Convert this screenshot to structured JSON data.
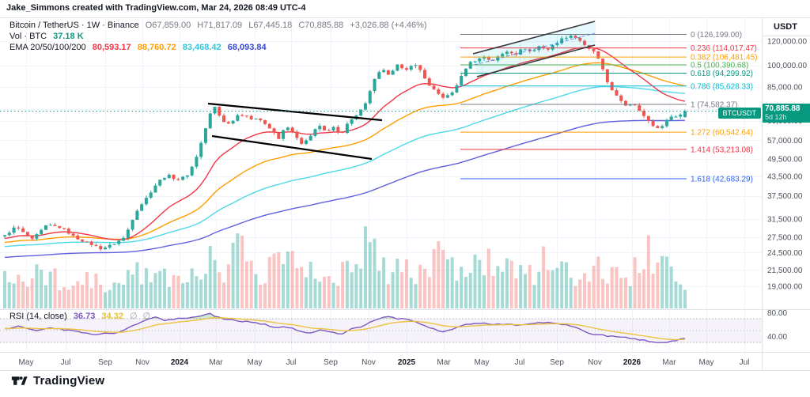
{
  "watermark": "Jake_Simmons created with TradingView.com, Mar 24, 2026 08:49 UTC-4",
  "header": {
    "symbol_line": "Bitcoin / TetherUS · 1W · Binance",
    "o": "O67,859.00",
    "h": "H71,817.09",
    "l": "L67,445.18",
    "c": "C70,885.88",
    "change": "+3,026.88 (+4.46%)",
    "vol_label": "Vol · BTC",
    "vol_value": "37.18 K",
    "ema_label": "EMA 20/50/100/200",
    "ema1": "80,593.17",
    "ema2": "88,760.72",
    "ema3": "83,468.42",
    "ema4": "68,093.84"
  },
  "rsi": {
    "label": "RSI (14, close)",
    "value": "36.73",
    "ma": "34.32",
    "icon1": "∅",
    "icon2": "∅"
  },
  "badges": {
    "symbol": "BTCUSDT",
    "price": "70,885.88",
    "countdown": "5d 12h"
  },
  "price_axis": {
    "currency": "USDT",
    "ticks": [
      [
        "120,000.00",
        120000
      ],
      [
        "100,000.00",
        100000
      ],
      [
        "85,000.00",
        85000
      ],
      [
        "72,000.00",
        72000
      ],
      [
        "66,000.00",
        66000
      ],
      [
        "57,000.00",
        57000
      ],
      [
        "49,500.00",
        49500
      ],
      [
        "43,500.00",
        43500
      ],
      [
        "37,500.00",
        37500
      ],
      [
        "31,500.00",
        31500
      ],
      [
        "27,500.00",
        27500
      ],
      [
        "24,500.00",
        24500
      ],
      [
        "21,500.00",
        21500
      ],
      [
        "19,000.00",
        19000
      ]
    ],
    "rsi_ticks": [
      [
        "80.00",
        80
      ],
      [
        "40.00",
        40
      ]
    ]
  },
  "time_axis": [
    [
      "May",
      33,
      0
    ],
    [
      "Jul",
      83,
      0
    ],
    [
      "Sep",
      133,
      0
    ],
    [
      "Nov",
      180,
      0
    ],
    [
      "2024",
      227,
      1
    ],
    [
      "Mar",
      273,
      0
    ],
    [
      "May",
      322,
      0
    ],
    [
      "Jul",
      368,
      0
    ],
    [
      "Sep",
      418,
      0
    ],
    [
      "Nov",
      466,
      0
    ],
    [
      "2025",
      514,
      1
    ],
    [
      "Mar",
      561,
      0
    ],
    [
      "May",
      609,
      0
    ],
    [
      "Jul",
      657,
      0
    ],
    [
      "Sep",
      704,
      0
    ],
    [
      "Nov",
      752,
      0
    ],
    [
      "2026",
      799,
      1
    ],
    [
      "Mar",
      846,
      0
    ],
    [
      "May",
      893,
      0
    ],
    [
      "Jul",
      941,
      0
    ]
  ],
  "footer": {
    "brand": "TradingView"
  },
  "colors": {
    "up": "#2aa79a",
    "down": "#f05650",
    "vol_up": "rgba(42,167,154,0.42)",
    "vol_down": "rgba(240,86,80,0.35)",
    "ema20": "#f23645",
    "ema50": "#ff9d00",
    "ema100": "#4fd8e8",
    "ema200": "#5f5fde",
    "rsi": "#7e57c2",
    "rsi_ma": "#edc240",
    "accent": "#089981",
    "grid": "#f0f3fa",
    "border": "#e0e3eb",
    "text_gray": "#787b86",
    "text_dark": "#131722"
  },
  "chart_data": {
    "type": "candlestick",
    "symbol": "Bitcoin / TetherUS (BTCUSDT)",
    "exchange": "Binance",
    "interval": "1W",
    "scale": "log",
    "current_candle": {
      "open": 67859.0,
      "high": 71817.09,
      "low": 67445.18,
      "close": 70885.88,
      "change_abs": 3026.88,
      "change_pct": 4.46,
      "time_left": "5d 12h"
    },
    "volume_btc": "37.18 K",
    "ema_values": {
      "ema20": 80593.17,
      "ema50": 88760.72,
      "ema100": 83468.42,
      "ema200": 68093.84
    },
    "rsi_values": {
      "rsi14": 36.73,
      "rsi_ma": 34.32,
      "overbought": 70,
      "oversold": 30
    },
    "fib_levels": [
      {
        "label": "0 (126,199.00)",
        "level": 0,
        "price": 126199.0,
        "color": "#787b86"
      },
      {
        "label": "0.236 (114,017.47)",
        "level": 0.236,
        "price": 114017.47,
        "color": "#f23645"
      },
      {
        "label": "0.382 (106,481.45)",
        "level": 0.382,
        "price": 106481.45,
        "color": "#ff9d00"
      },
      {
        "label": "0.5 (100,390.68)",
        "level": 0.5,
        "price": 100390.68,
        "color": "#4caf50"
      },
      {
        "label": "0.618 (94,299.92)",
        "level": 0.618,
        "price": 94299.92,
        "color": "#089981"
      },
      {
        "label": "0.786 (85,628.33)",
        "level": 0.786,
        "price": 85628.33,
        "color": "#00bcd4"
      },
      {
        "label": "1 (74,582.37)",
        "level": 1,
        "price": 74582.37,
        "color": "#787b86"
      },
      {
        "label": "1.272 (60,542.64)",
        "level": 1.272,
        "price": 60542.64,
        "color": "#ff9d00"
      },
      {
        "label": "1.414 (53,213.08)",
        "level": 1.414,
        "price": 53213.08,
        "color": "#f23645"
      },
      {
        "label": "1.618 (42,683.29)",
        "level": 1.618,
        "price": 42683.29,
        "color": "#2962ff"
      }
    ],
    "price_path": [
      [
        6,
        27800
      ],
      [
        20,
        29800
      ],
      [
        40,
        26900
      ],
      [
        60,
        30200
      ],
      [
        78,
        29500
      ],
      [
        95,
        27400
      ],
      [
        112,
        26300
      ],
      [
        128,
        25200
      ],
      [
        142,
        26000
      ],
      [
        158,
        27500
      ],
      [
        172,
        33400
      ],
      [
        186,
        37200
      ],
      [
        200,
        41800
      ],
      [
        212,
        43900
      ],
      [
        224,
        42300
      ],
      [
        236,
        43600
      ],
      [
        246,
        48200
      ],
      [
        256,
        57500
      ],
      [
        266,
        69800
      ],
      [
        272,
        73400
      ],
      [
        280,
        66200
      ],
      [
        290,
        64300
      ],
      [
        300,
        68800
      ],
      [
        310,
        69300
      ],
      [
        318,
        66100
      ],
      [
        326,
        67900
      ],
      [
        334,
        64800
      ],
      [
        344,
        61200
      ],
      [
        352,
        57300
      ],
      [
        362,
        63800
      ],
      [
        372,
        59400
      ],
      [
        382,
        54900
      ],
      [
        392,
        58300
      ],
      [
        402,
        64400
      ],
      [
        412,
        60200
      ],
      [
        422,
        62700
      ],
      [
        432,
        59800
      ],
      [
        442,
        66300
      ],
      [
        452,
        68800
      ],
      [
        462,
        74800
      ],
      [
        472,
        88500
      ],
      [
        482,
        96800
      ],
      [
        492,
        93500
      ],
      [
        502,
        100500
      ],
      [
        512,
        95300
      ],
      [
        522,
        101800
      ],
      [
        532,
        96200
      ],
      [
        542,
        85900
      ],
      [
        552,
        81300
      ],
      [
        562,
        78200
      ],
      [
        572,
        81700
      ],
      [
        582,
        90500
      ],
      [
        592,
        101500
      ],
      [
        602,
        104200
      ],
      [
        612,
        106500
      ],
      [
        622,
        103200
      ],
      [
        632,
        107800
      ],
      [
        642,
        111500
      ],
      [
        652,
        108800
      ],
      [
        662,
        114200
      ],
      [
        672,
        110300
      ],
      [
        682,
        115800
      ],
      [
        692,
        112400
      ],
      [
        702,
        117800
      ],
      [
        712,
        122800
      ],
      [
        722,
        125400
      ],
      [
        732,
        121500
      ],
      [
        742,
        113500
      ],
      [
        752,
        110800
      ],
      [
        760,
        99500
      ],
      [
        768,
        88000
      ],
      [
        776,
        81500
      ],
      [
        784,
        76500
      ],
      [
        792,
        73800
      ],
      [
        800,
        75600
      ],
      [
        808,
        71800
      ],
      [
        816,
        67200
      ],
      [
        824,
        63900
      ],
      [
        832,
        62300
      ],
      [
        840,
        64500
      ],
      [
        848,
        68600
      ],
      [
        856,
        67859
      ],
      [
        866,
        70885.88
      ]
    ],
    "rsi_path": [
      [
        6,
        53
      ],
      [
        25,
        57
      ],
      [
        45,
        50
      ],
      [
        65,
        54
      ],
      [
        85,
        51
      ],
      [
        105,
        46
      ],
      [
        122,
        44
      ],
      [
        140,
        45
      ],
      [
        155,
        49
      ],
      [
        170,
        60
      ],
      [
        185,
        69
      ],
      [
        198,
        72
      ],
      [
        210,
        67
      ],
      [
        224,
        70
      ],
      [
        238,
        71
      ],
      [
        252,
        74
      ],
      [
        266,
        78
      ],
      [
        278,
        71
      ],
      [
        292,
        68
      ],
      [
        306,
        66
      ],
      [
        320,
        64
      ],
      [
        334,
        61
      ],
      [
        348,
        54
      ],
      [
        362,
        57
      ],
      [
        376,
        50
      ],
      [
        390,
        46
      ],
      [
        404,
        50
      ],
      [
        418,
        47
      ],
      [
        432,
        45
      ],
      [
        446,
        53
      ],
      [
        460,
        58
      ],
      [
        474,
        68
      ],
      [
        488,
        73
      ],
      [
        502,
        70
      ],
      [
        516,
        68
      ],
      [
        530,
        63
      ],
      [
        544,
        54
      ],
      [
        558,
        48
      ],
      [
        572,
        52
      ],
      [
        586,
        60
      ],
      [
        600,
        63
      ],
      [
        614,
        62
      ],
      [
        628,
        60
      ],
      [
        642,
        62
      ],
      [
        656,
        58
      ],
      [
        670,
        61
      ],
      [
        684,
        63
      ],
      [
        698,
        64
      ],
      [
        712,
        60
      ],
      [
        726,
        57
      ],
      [
        740,
        48
      ],
      [
        754,
        43
      ],
      [
        768,
        41
      ],
      [
        782,
        40
      ],
      [
        796,
        37
      ],
      [
        810,
        34
      ],
      [
        822,
        32
      ],
      [
        834,
        30
      ],
      [
        844,
        31
      ],
      [
        854,
        34
      ],
      [
        866,
        36.73
      ]
    ],
    "volume_envelope": [
      [
        6,
        45
      ],
      [
        30,
        38
      ],
      [
        55,
        42
      ],
      [
        80,
        36
      ],
      [
        105,
        33
      ],
      [
        130,
        34
      ],
      [
        155,
        32
      ],
      [
        175,
        44
      ],
      [
        195,
        48
      ],
      [
        215,
        40
      ],
      [
        235,
        36
      ],
      [
        252,
        50
      ],
      [
        268,
        58
      ],
      [
        282,
        50
      ],
      [
        296,
        78
      ],
      [
        306,
        86
      ],
      [
        318,
        56
      ],
      [
        334,
        46
      ],
      [
        350,
        52
      ],
      [
        366,
        56
      ],
      [
        382,
        48
      ],
      [
        398,
        44
      ],
      [
        414,
        50
      ],
      [
        430,
        42
      ],
      [
        448,
        46
      ],
      [
        464,
        82
      ],
      [
        478,
        56
      ],
      [
        492,
        50
      ],
      [
        506,
        58
      ],
      [
        522,
        48
      ],
      [
        538,
        54
      ],
      [
        552,
        76
      ],
      [
        566,
        50
      ],
      [
        582,
        56
      ],
      [
        598,
        48
      ],
      [
        614,
        60
      ],
      [
        630,
        52
      ],
      [
        646,
        48
      ],
      [
        662,
        56
      ],
      [
        678,
        48
      ],
      [
        692,
        64
      ],
      [
        708,
        50
      ],
      [
        724,
        46
      ],
      [
        740,
        52
      ],
      [
        756,
        56
      ],
      [
        772,
        44
      ],
      [
        788,
        40
      ],
      [
        804,
        50
      ],
      [
        816,
        72
      ],
      [
        828,
        60
      ],
      [
        840,
        54
      ],
      [
        852,
        40
      ],
      [
        863,
        26
      ]
    ],
    "annotations": {
      "descending_channel": {
        "upper": [
          [
            263,
            131
          ],
          [
            483,
            152
          ]
        ],
        "lower": [
          [
            268,
            172
          ],
          [
            470,
            201
          ]
        ],
        "color": "#000000"
      },
      "rising_channel": {
        "upper": [
          [
            598,
            68
          ],
          [
            752,
            27
          ]
        ],
        "lower": [
          [
            603,
            97
          ],
          [
            752,
            57
          ]
        ],
        "midline": [
          [
            600,
            82
          ],
          [
            752,
            42
          ]
        ],
        "line_color": "#37383d",
        "fill": "rgba(0,188,212,0.10)",
        "mid_color": "#2962ff"
      }
    },
    "ema_seeds": {
      "ema20": 27200,
      "ema50": 26400,
      "ema100": 25600,
      "ema200": 23600
    }
  }
}
